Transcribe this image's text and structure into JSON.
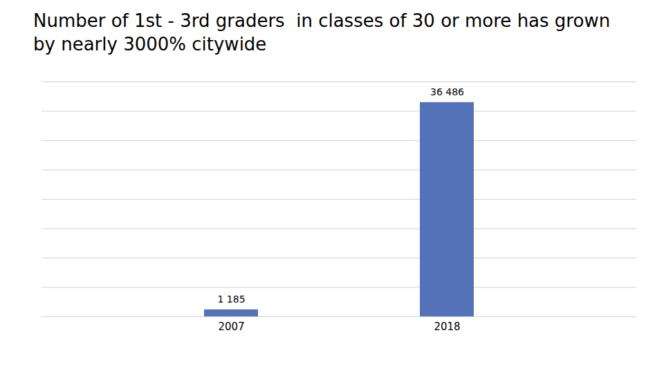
{
  "chart_data": {
    "type": "bar",
    "title": "Number of 1st - 3rd graders  in classes of 30 or more has grown by nearly 3000% citywide",
    "categories": [
      "2007",
      "2018"
    ],
    "values": [
      1185,
      36486
    ],
    "value_labels": [
      "1 185",
      "36 486"
    ],
    "color": "#5472b8",
    "ylim": [
      0,
      40000
    ],
    "yticks": [
      0,
      5000,
      10000,
      15000,
      20000,
      25000,
      30000,
      35000,
      40000
    ],
    "grid": true,
    "data_labels": true,
    "tick_labels": "x"
  }
}
